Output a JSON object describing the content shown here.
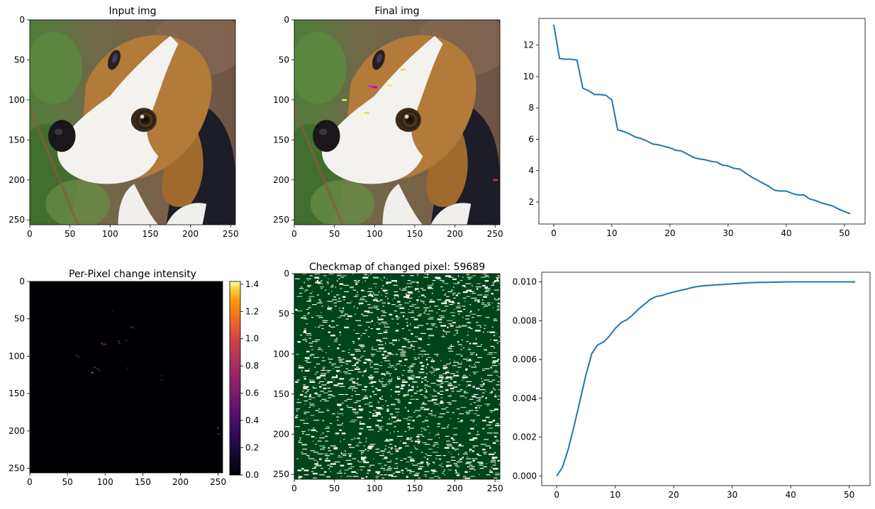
{
  "chart_data": [
    {
      "type": "image",
      "title": "Input img",
      "x_ticks": [
        "0",
        "50",
        "100",
        "150",
        "200",
        "250"
      ],
      "y_ticks": [
        "0",
        "50",
        "100",
        "150",
        "200",
        "250"
      ],
      "xlim": [
        0,
        256
      ],
      "ylim": [
        256,
        0
      ],
      "content": "beagle-photo",
      "colors": {
        "background": "#6b5540",
        "foliage": "#4e7a35",
        "fur_brown": "#b07a3c",
        "fur_white": "#f2f1ee",
        "fur_black": "#1c1d25"
      }
    },
    {
      "type": "image",
      "title": "Final img",
      "x_ticks": [
        "0",
        "50",
        "100",
        "150",
        "200",
        "250"
      ],
      "y_ticks": [
        "0",
        "50",
        "100",
        "150",
        "200",
        "250"
      ],
      "xlim": [
        0,
        256
      ],
      "ylim": [
        256,
        0
      ],
      "content": "beagle-photo-perturbed",
      "perturbation_points": [
        {
          "x": 95,
          "y": 83,
          "color": "#d020d0"
        },
        {
          "x": 100,
          "y": 84,
          "color": "#c000c0"
        },
        {
          "x": 135,
          "y": 62,
          "color": "#e0e040"
        },
        {
          "x": 118,
          "y": 82,
          "color": "#f0f060"
        },
        {
          "x": 82,
          "y": 120,
          "color": "#ffff80"
        },
        {
          "x": 90,
          "y": 116,
          "color": "#e0e060"
        },
        {
          "x": 62,
          "y": 100,
          "color": "#c0ff60"
        },
        {
          "x": 250,
          "y": 200,
          "color": "#e03030"
        }
      ]
    },
    {
      "type": "line",
      "title": "",
      "xlabel": "",
      "ylabel": "",
      "x_ticks": [
        0,
        10,
        20,
        30,
        40,
        50
      ],
      "y_ticks": [
        2,
        4,
        6,
        8,
        10,
        12
      ],
      "xlim": [
        -2.55,
        53.55
      ],
      "ylim": [
        0.6,
        13.7
      ],
      "series": [
        {
          "color": "#1f77b4",
          "values": [
            13.3,
            11.15,
            11.1,
            11.1,
            11.05,
            9.25,
            9.1,
            8.85,
            8.85,
            8.8,
            8.5,
            6.6,
            6.5,
            6.35,
            6.15,
            6.05,
            5.9,
            5.7,
            5.65,
            5.55,
            5.45,
            5.3,
            5.25,
            5.05,
            4.85,
            4.75,
            4.7,
            4.6,
            4.55,
            4.35,
            4.3,
            4.15,
            4.1,
            3.85,
            3.6,
            3.4,
            3.2,
            3.0,
            2.75,
            2.7,
            2.7,
            2.55,
            2.45,
            2.45,
            2.2,
            2.1,
            1.95,
            1.85,
            1.75,
            1.55,
            1.4,
            1.25
          ]
        }
      ]
    },
    {
      "type": "heatmap",
      "title": "Per-Pixel change intensity",
      "x_ticks": [
        "0",
        "50",
        "100",
        "150",
        "200",
        "250"
      ],
      "y_ticks": [
        "0",
        "50",
        "100",
        "150",
        "200",
        "250"
      ],
      "xlim": [
        0,
        256
      ],
      "ylim": [
        256,
        0
      ],
      "colormap": "inferno",
      "colorbar_ticks": [
        "0.0",
        "0.2",
        "0.4",
        "0.6",
        "0.8",
        "1.0",
        "1.2",
        "1.4"
      ],
      "colorbar_range": [
        0,
        1.42
      ],
      "hotspots": [
        {
          "x": 96,
          "y": 83,
          "v": 0.55
        },
        {
          "x": 100,
          "y": 84,
          "v": 0.5
        },
        {
          "x": 98,
          "y": 85,
          "v": 0.4
        },
        {
          "x": 118,
          "y": 80,
          "v": 0.55
        },
        {
          "x": 119,
          "y": 83,
          "v": 0.4
        },
        {
          "x": 135,
          "y": 61,
          "v": 0.45
        },
        {
          "x": 138,
          "y": 62,
          "v": 0.35
        },
        {
          "x": 62,
          "y": 99,
          "v": 0.45
        },
        {
          "x": 65,
          "y": 101,
          "v": 0.35
        },
        {
          "x": 83,
          "y": 122,
          "v": 0.85
        },
        {
          "x": 86,
          "y": 115,
          "v": 0.5
        },
        {
          "x": 90,
          "y": 117,
          "v": 0.45
        },
        {
          "x": 93,
          "y": 119,
          "v": 0.4
        },
        {
          "x": 128,
          "y": 79,
          "v": 0.3
        },
        {
          "x": 130,
          "y": 116,
          "v": 0.3
        },
        {
          "x": 176,
          "y": 126,
          "v": 0.25
        },
        {
          "x": 175,
          "y": 132,
          "v": 0.3
        },
        {
          "x": 110,
          "y": 40,
          "v": 0.2
        },
        {
          "x": 250,
          "y": 196,
          "v": 0.6
        },
        {
          "x": 251,
          "y": 204,
          "v": 0.5
        }
      ]
    },
    {
      "type": "heatmap",
      "title": "Checkmap of changed pixel: 59689",
      "x_ticks": [
        "0",
        "50",
        "100",
        "150",
        "200",
        "250"
      ],
      "y_ticks": [
        "0",
        "50",
        "100",
        "150",
        "200",
        "250"
      ],
      "xlim": [
        0,
        256
      ],
      "ylim": [
        256,
        0
      ],
      "colormap": "Greens",
      "changed_pixels": 59689,
      "colors": {
        "unchanged": "#00441b",
        "changed": "#f7fcf5",
        "light": "#a1d99b"
      }
    },
    {
      "type": "line",
      "title": "",
      "xlabel": "",
      "ylabel": "",
      "x_ticks": [
        0,
        10,
        20,
        30,
        40,
        50
      ],
      "y_ticks": [
        "0.000",
        "0.002",
        "0.004",
        "0.006",
        "0.008",
        "0.010"
      ],
      "y_tick_values": [
        0,
        0.002,
        0.004,
        0.006,
        0.008,
        0.01
      ],
      "xlim": [
        -2.55,
        53.55
      ],
      "ylim": [
        -0.0005,
        0.0105
      ],
      "series": [
        {
          "color": "#1f77b4",
          "values": [
            0.0,
            0.00045,
            0.0014,
            0.0026,
            0.0039,
            0.0052,
            0.0063,
            0.00675,
            0.0069,
            0.0072,
            0.0076,
            0.0079,
            0.00805,
            0.0083,
            0.0086,
            0.00885,
            0.0091,
            0.00925,
            0.0093,
            0.0094,
            0.00948,
            0.00955,
            0.00962,
            0.0097,
            0.00976,
            0.0098,
            0.00982,
            0.00984,
            0.00986,
            0.00988,
            0.0099,
            0.00992,
            0.00994,
            0.00996,
            0.00997,
            0.00998,
            0.00998,
            0.00999,
            0.00999,
            0.01,
            0.01,
            0.01,
            0.01,
            0.01,
            0.01,
            0.01,
            0.01,
            0.01,
            0.01,
            0.01,
            0.01,
            0.01
          ]
        }
      ]
    }
  ]
}
